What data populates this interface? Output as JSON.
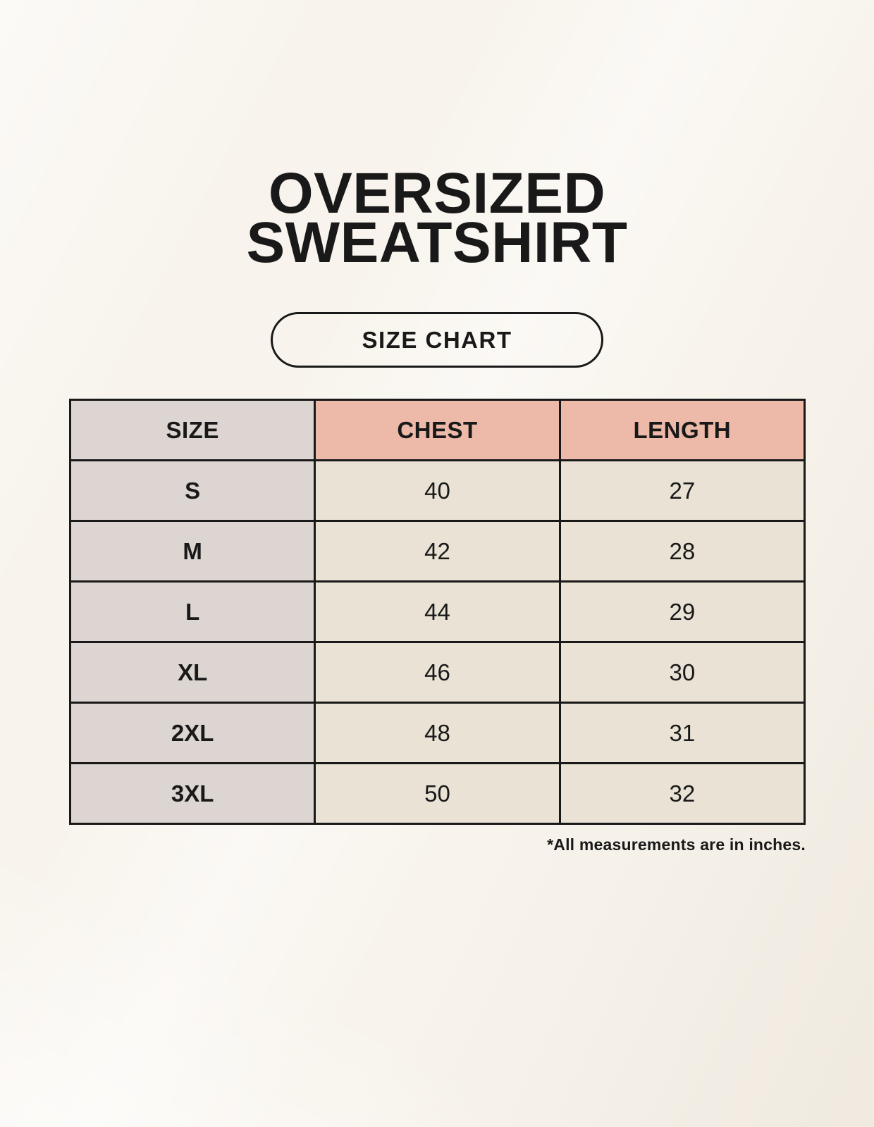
{
  "header": {
    "title_line1": "OVERSIZED",
    "title_line2": "SWEATSHIRT",
    "button_label": "SIZE CHART"
  },
  "chart_data": {
    "type": "table",
    "title": "Oversized Sweatshirt Size Chart",
    "columns": [
      "SIZE",
      "CHEST",
      "LENGTH"
    ],
    "rows": [
      {
        "size": "S",
        "chest": "40",
        "length": "27"
      },
      {
        "size": "M",
        "chest": "42",
        "length": "28"
      },
      {
        "size": "L",
        "chest": "44",
        "length": "29"
      },
      {
        "size": "XL",
        "chest": "46",
        "length": "30"
      },
      {
        "size": "2XL",
        "chest": "48",
        "length": "31"
      },
      {
        "size": "3XL",
        "chest": "50",
        "length": "32"
      }
    ],
    "units_note": "*All measurements are in inches."
  },
  "colors": {
    "background": "#F8F4ED",
    "accent_salmon": "#EDB9A8",
    "label_gray": "#DCD5D1",
    "cell_cream": "#E9E2D5",
    "border": "#191919",
    "text": "#191919"
  }
}
